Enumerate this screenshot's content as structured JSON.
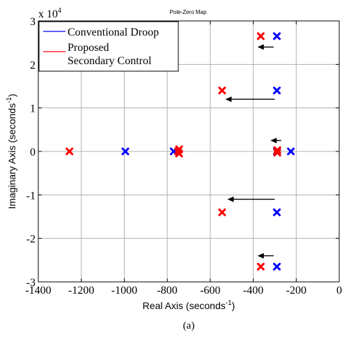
{
  "chart_data": {
    "type": "scatter",
    "title": "Pole-Zero Map",
    "xlabel": "Real Axis (seconds",
    "xlabel_sup": "-1",
    "xlabel_end": ")",
    "ylabel": "Imaginary Axis (seconds",
    "ylabel_sup": "-1",
    "ylabel_end": ")",
    "y_multiplier": "x 10",
    "y_multiplier_exp": "4",
    "caption": "(a)",
    "xlim": [
      -1400,
      0
    ],
    "ylim": [
      -3,
      3
    ],
    "y_scale_factor": 10000,
    "grid": true,
    "x_ticks": [
      {
        "value": -1400,
        "label": "-1400"
      },
      {
        "value": -1200,
        "label": "-1200"
      },
      {
        "value": -1000,
        "label": "-1000"
      },
      {
        "value": -800,
        "label": "-800"
      },
      {
        "value": -600,
        "label": "-600"
      },
      {
        "value": -400,
        "label": "-400"
      },
      {
        "value": -200,
        "label": "-200"
      },
      {
        "value": 0,
        "label": "0"
      }
    ],
    "y_ticks": [
      {
        "value": 3,
        "label": "3"
      },
      {
        "value": 2,
        "label": "2"
      },
      {
        "value": 1,
        "label": "1"
      },
      {
        "value": 0,
        "label": "0"
      },
      {
        "value": -1,
        "label": "-1"
      },
      {
        "value": -2,
        "label": "-2"
      },
      {
        "value": -3,
        "label": "-3"
      }
    ],
    "legend_placement": "top-left",
    "series": [
      {
        "name": "Conventional Droop",
        "color": "#0000ff",
        "marker": "x",
        "points": [
          {
            "x": -290,
            "y": 2.65
          },
          {
            "x": -290,
            "y": 1.4
          },
          {
            "x": -290,
            "y": -1.4
          },
          {
            "x": -290,
            "y": -2.65
          },
          {
            "x": -225,
            "y": 0
          },
          {
            "x": -290,
            "y": 0
          },
          {
            "x": -770,
            "y": 0
          },
          {
            "x": -995,
            "y": 0
          }
        ]
      },
      {
        "name": "Proposed\nSecondary Control",
        "color": "#ff0000",
        "marker": "x",
        "points": [
          {
            "x": -365,
            "y": 2.65
          },
          {
            "x": -545,
            "y": 1.4
          },
          {
            "x": -545,
            "y": -1.4
          },
          {
            "x": -365,
            "y": -2.65
          },
          {
            "x": -288,
            "y": 0.03
          },
          {
            "x": -288,
            "y": -0.03
          },
          {
            "x": -745,
            "y": 0.05
          },
          {
            "x": -745,
            "y": -0.05
          },
          {
            "x": -750,
            "y": 0
          },
          {
            "x": -1255,
            "y": 0
          }
        ]
      }
    ],
    "arrows": [
      {
        "x_from": -305,
        "x_to": -380,
        "y": 2.4
      },
      {
        "x_from": -300,
        "x_to": -530,
        "y": 1.2
      },
      {
        "x_from": -270,
        "x_to": -320,
        "y": 0.25
      },
      {
        "x_from": -300,
        "x_to": -520,
        "y": -1.1
      },
      {
        "x_from": -305,
        "x_to": -380,
        "y": -2.4
      }
    ]
  }
}
